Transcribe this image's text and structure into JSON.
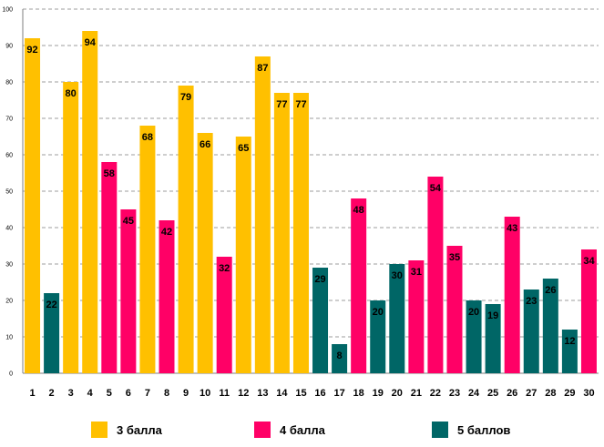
{
  "chart_data": {
    "type": "bar",
    "title": "",
    "xlabel": "",
    "ylabel": "",
    "ylim": [
      0,
      100
    ],
    "ytick_step": 10,
    "yticks": [
      "0",
      "10",
      "20",
      "30",
      "40",
      "50",
      "60",
      "70",
      "80",
      "90",
      "100"
    ],
    "grid": true,
    "categories": [
      "1",
      "2",
      "3",
      "4",
      "5",
      "6",
      "7",
      "8",
      "9",
      "10",
      "11",
      "12",
      "13",
      "14",
      "15",
      "16",
      "17",
      "18",
      "19",
      "20",
      "21",
      "22",
      "23",
      "24",
      "25",
      "26",
      "27",
      "28",
      "29",
      "30"
    ],
    "values": [
      92,
      22,
      80,
      94,
      58,
      45,
      68,
      42,
      79,
      66,
      32,
      65,
      87,
      77,
      77,
      29,
      8,
      48,
      20,
      30,
      31,
      54,
      35,
      20,
      19,
      43,
      23,
      26,
      12,
      34
    ],
    "groups": [
      "3",
      "5",
      "3",
      "3",
      "4",
      "4",
      "3",
      "4",
      "3",
      "3",
      "4",
      "3",
      "3",
      "3",
      "3",
      "5",
      "5",
      "4",
      "5",
      "5",
      "4",
      "4",
      "4",
      "5",
      "5",
      "4",
      "5",
      "5",
      "5",
      "4"
    ],
    "data_labels": [
      "92",
      "22",
      "80",
      "94",
      "58",
      "45",
      "68",
      "42",
      "79",
      "66",
      "32",
      "65",
      "87",
      "77",
      "77",
      "29",
      "8",
      "48",
      "20",
      "30",
      "31",
      "54",
      "35",
      "20",
      "19",
      "43",
      "23",
      "26",
      "12",
      "34"
    ],
    "legend_position": "bottom",
    "legend": [
      {
        "key": "3",
        "label": "3 балла",
        "color": "#FFC000"
      },
      {
        "key": "4",
        "label": "4 балла",
        "color": "#FF0066"
      },
      {
        "key": "5",
        "label": "5 баллов",
        "color": "#006666"
      }
    ]
  }
}
